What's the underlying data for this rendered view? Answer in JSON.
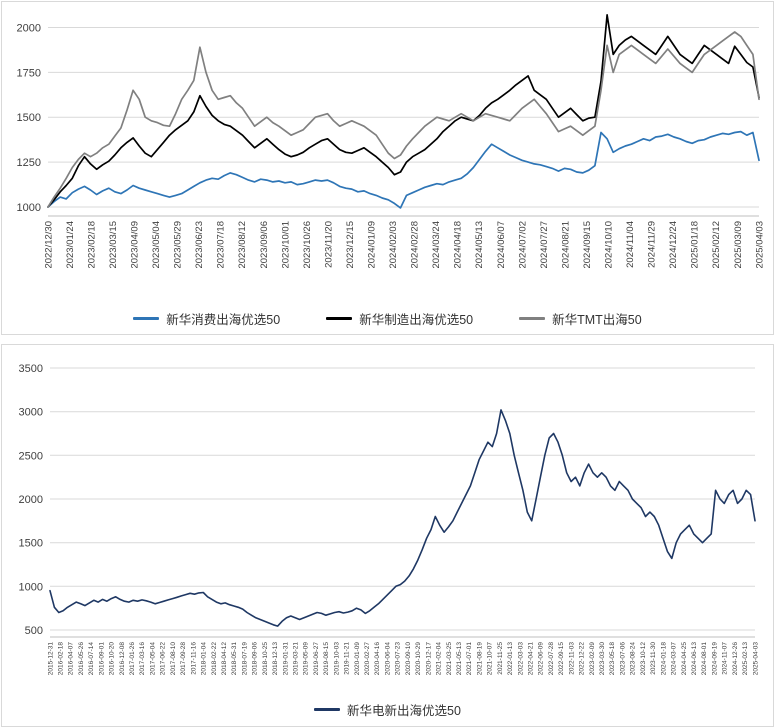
{
  "charts_common": {
    "grid_color": "#d9d9d9",
    "axis_line_color": "#bfbfbf",
    "tick_label_color": "#404040"
  },
  "chart_data": [
    {
      "type": "line",
      "title": "",
      "xlabel": "",
      "ylabel": "",
      "grid": "horizontal",
      "legend_position": "bottom",
      "ylim": [
        950,
        2075
      ],
      "yticks": [
        1000,
        1250,
        1500,
        1750,
        2000
      ],
      "xticks": [
        "2022/12/30",
        "2023/01/24",
        "2023/02/18",
        "2023/03/15",
        "2023/04/09",
        "2023/05/04",
        "2023/05/29",
        "2023/06/23",
        "2023/07/18",
        "2023/08/12",
        "2023/09/06",
        "2023/10/01",
        "2023/10/26",
        "2023/11/20",
        "2023/12/15",
        "2024/01/09",
        "2024/02/03",
        "2024/02/28",
        "2024/03/24",
        "2024/04/18",
        "2024/05/13",
        "2024/06/07",
        "2024/07/02",
        "2024/07/27",
        "2024/08/21",
        "2024/09/15",
        "2024/10/10",
        "2024/11/04",
        "2024/11/29",
        "2024/12/24",
        "2025/01/18",
        "2025/02/12",
        "2025/03/09",
        "2025/04/03"
      ],
      "series": [
        {
          "name": "新华消费出海优选50",
          "color": "#2e75b6",
          "values": [
            1000,
            1030,
            1055,
            1045,
            1080,
            1100,
            1115,
            1095,
            1070,
            1090,
            1105,
            1085,
            1075,
            1095,
            1120,
            1105,
            1095,
            1085,
            1075,
            1065,
            1055,
            1065,
            1075,
            1095,
            1115,
            1135,
            1150,
            1160,
            1155,
            1175,
            1190,
            1180,
            1165,
            1150,
            1140,
            1155,
            1150,
            1140,
            1145,
            1135,
            1140,
            1125,
            1130,
            1140,
            1150,
            1145,
            1150,
            1135,
            1115,
            1105,
            1100,
            1085,
            1090,
            1075,
            1065,
            1050,
            1040,
            1020,
            995,
            1065,
            1080,
            1095,
            1110,
            1120,
            1130,
            1125,
            1140,
            1150,
            1160,
            1185,
            1220,
            1265,
            1310,
            1350,
            1330,
            1310,
            1290,
            1275,
            1260,
            1250,
            1240,
            1235,
            1225,
            1215,
            1200,
            1215,
            1210,
            1195,
            1190,
            1205,
            1230,
            1415,
            1380,
            1305,
            1325,
            1340,
            1350,
            1365,
            1380,
            1370,
            1390,
            1395,
            1405,
            1390,
            1380,
            1365,
            1355,
            1370,
            1375,
            1390,
            1400,
            1410,
            1405,
            1415,
            1420,
            1400,
            1415,
            1260
          ]
        },
        {
          "name": "新华制造出海优选50",
          "color": "#000000",
          "values": [
            1000,
            1040,
            1085,
            1120,
            1160,
            1230,
            1280,
            1240,
            1210,
            1235,
            1255,
            1290,
            1330,
            1360,
            1385,
            1340,
            1300,
            1280,
            1320,
            1360,
            1400,
            1430,
            1455,
            1480,
            1530,
            1620,
            1560,
            1510,
            1480,
            1460,
            1450,
            1425,
            1400,
            1365,
            1330,
            1355,
            1380,
            1350,
            1320,
            1295,
            1280,
            1290,
            1305,
            1330,
            1350,
            1370,
            1380,
            1350,
            1320,
            1305,
            1300,
            1315,
            1330,
            1305,
            1280,
            1250,
            1220,
            1180,
            1195,
            1250,
            1280,
            1300,
            1320,
            1350,
            1380,
            1420,
            1450,
            1480,
            1500,
            1490,
            1480,
            1510,
            1550,
            1580,
            1600,
            1625,
            1650,
            1680,
            1705,
            1730,
            1650,
            1625,
            1600,
            1550,
            1500,
            1525,
            1550,
            1515,
            1480,
            1495,
            1500,
            1700,
            2070,
            1850,
            1900,
            1930,
            1950,
            1925,
            1900,
            1875,
            1850,
            1900,
            1950,
            1900,
            1850,
            1825,
            1800,
            1850,
            1900,
            1875,
            1850,
            1825,
            1800,
            1895,
            1850,
            1805,
            1780,
            1610
          ]
        },
        {
          "name": "新华TMT出海50",
          "color": "#808080",
          "values": [
            1000,
            1055,
            1105,
            1160,
            1220,
            1265,
            1300,
            1280,
            1300,
            1330,
            1350,
            1395,
            1440,
            1540,
            1650,
            1600,
            1500,
            1480,
            1470,
            1455,
            1450,
            1520,
            1600,
            1650,
            1705,
            1890,
            1750,
            1650,
            1600,
            1610,
            1620,
            1580,
            1550,
            1500,
            1450,
            1475,
            1500,
            1470,
            1450,
            1425,
            1400,
            1415,
            1430,
            1465,
            1500,
            1510,
            1520,
            1480,
            1450,
            1465,
            1480,
            1465,
            1450,
            1425,
            1400,
            1350,
            1300,
            1270,
            1290,
            1340,
            1380,
            1415,
            1450,
            1475,
            1500,
            1490,
            1480,
            1500,
            1520,
            1500,
            1480,
            1500,
            1520,
            1510,
            1500,
            1490,
            1480,
            1515,
            1550,
            1575,
            1600,
            1560,
            1520,
            1470,
            1420,
            1435,
            1450,
            1425,
            1400,
            1425,
            1450,
            1650,
            1900,
            1750,
            1850,
            1875,
            1900,
            1875,
            1850,
            1825,
            1800,
            1840,
            1880,
            1840,
            1800,
            1775,
            1750,
            1800,
            1850,
            1875,
            1900,
            1925,
            1950,
            1975,
            1950,
            1900,
            1850,
            1600
          ]
        }
      ]
    },
    {
      "type": "line",
      "title": "",
      "xlabel": "",
      "ylabel": "",
      "grid": "horizontal",
      "legend_position": "bottom",
      "ylim": [
        420,
        3580
      ],
      "yticks": [
        500,
        1000,
        1500,
        2000,
        2500,
        3000,
        3500
      ],
      "xticks": [
        "2015-12-31",
        "2016-02-18",
        "2016-04-07",
        "2016-05-26",
        "2016-07-14",
        "2016-09-01",
        "2016-10-20",
        "2016-12-08",
        "2017-01-26",
        "2017-03-16",
        "2017-05-04",
        "2017-06-22",
        "2017-08-10",
        "2017-09-28",
        "2017-11-16",
        "2018-01-04",
        "2018-02-22",
        "2018-04-12",
        "2018-05-31",
        "2018-07-19",
        "2018-09-06",
        "2018-10-25",
        "2018-12-13",
        "2019-01-31",
        "2019-03-21",
        "2019-05-09",
        "2019-06-27",
        "2019-08-15",
        "2019-10-03",
        "2019-11-21",
        "2020-01-09",
        "2020-02-27",
        "2020-04-16",
        "2020-06-04",
        "2020-07-23",
        "2020-09-10",
        "2020-10-29",
        "2020-12-17",
        "2021-02-04",
        "2021-03-25",
        "2021-05-13",
        "2021-07-01",
        "2021-08-19",
        "2021-10-07",
        "2021-11-25",
        "2022-01-13",
        "2022-03-03",
        "2022-04-21",
        "2022-06-09",
        "2022-07-28",
        "2022-09-15",
        "2022-11-03",
        "2022-12-22",
        "2023-02-09",
        "2023-03-30",
        "2023-05-18",
        "2023-07-06",
        "2023-08-24",
        "2023-10-12",
        "2023-11-30",
        "2024-01-18",
        "2024-03-07",
        "2024-04-25",
        "2024-06-13",
        "2024-08-01",
        "2024-09-19",
        "2024-11-07",
        "2024-12-26",
        "2025-02-13",
        "2025-04-03"
      ],
      "series": [
        {
          "name": "新华电新出海优选50",
          "color": "#1f3864",
          "values": [
            950,
            760,
            700,
            720,
            760,
            790,
            820,
            800,
            780,
            810,
            840,
            820,
            850,
            830,
            860,
            880,
            850,
            830,
            820,
            840,
            830,
            845,
            835,
            820,
            800,
            815,
            830,
            845,
            860,
            875,
            890,
            905,
            920,
            910,
            925,
            930,
            880,
            850,
            820,
            800,
            810,
            790,
            775,
            760,
            740,
            700,
            670,
            640,
            620,
            600,
            580,
            560,
            545,
            600,
            640,
            660,
            640,
            620,
            640,
            660,
            680,
            700,
            690,
            670,
            685,
            700,
            710,
            695,
            705,
            720,
            750,
            730,
            690,
            720,
            760,
            800,
            850,
            900,
            950,
            1000,
            1020,
            1060,
            1120,
            1200,
            1300,
            1420,
            1550,
            1650,
            1800,
            1700,
            1620,
            1680,
            1750,
            1850,
            1950,
            2050,
            2150,
            2300,
            2450,
            2550,
            2650,
            2600,
            2750,
            3020,
            2900,
            2750,
            2500,
            2300,
            2100,
            1850,
            1750,
            2000,
            2250,
            2500,
            2700,
            2750,
            2650,
            2500,
            2300,
            2200,
            2250,
            2150,
            2300,
            2400,
            2300,
            2250,
            2300,
            2250,
            2150,
            2100,
            2200,
            2150,
            2100,
            2000,
            1950,
            1900,
            1800,
            1850,
            1800,
            1700,
            1550,
            1400,
            1320,
            1500,
            1600,
            1650,
            1700,
            1600,
            1550,
            1500,
            1550,
            1600,
            2100,
            2000,
            1950,
            2050,
            2100,
            1950,
            2000,
            2100,
            2050,
            1750
          ]
        }
      ]
    }
  ]
}
